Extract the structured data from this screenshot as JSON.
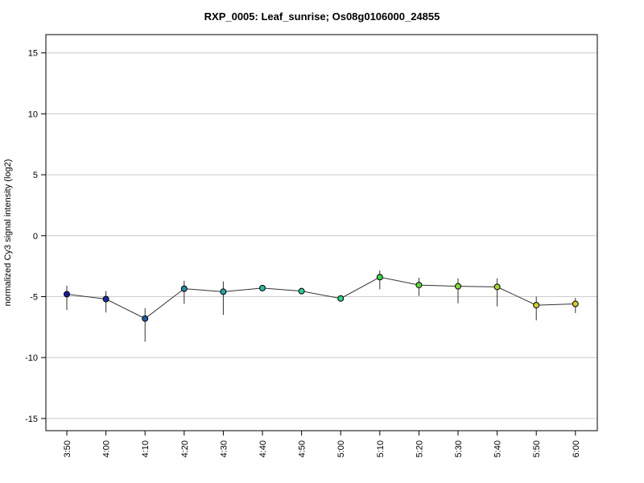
{
  "chart_data": {
    "type": "line",
    "title": "RXP_0005: Leaf_sunrise; Os08g0106000_24855",
    "xlabel": "",
    "ylabel": "normalized Cy3 signal intensity (log2)",
    "ylim": [
      -16,
      16.5
    ],
    "yticks": [
      -15,
      -10,
      -5,
      0,
      5,
      10,
      15
    ],
    "grid": "horizontal",
    "categories": [
      "3:50",
      "4:00",
      "4:10",
      "4:20",
      "4:30",
      "4:40",
      "4:50",
      "5:00",
      "5:10",
      "5:20",
      "5:30",
      "5:40",
      "5:50",
      "6:00"
    ],
    "series": [
      {
        "values": [
          -4.8,
          -5.2,
          -6.8,
          -4.35,
          -4.6,
          -4.3,
          -4.55,
          -5.15,
          -3.4,
          -4.05,
          -4.15,
          -4.2,
          -5.7,
          -5.6
        ],
        "error_low": [
          -6.1,
          -6.3,
          -8.7,
          -5.6,
          -6.5,
          -4.5,
          -4.7,
          -5.35,
          -4.4,
          -4.95,
          -5.55,
          -5.8,
          -6.95,
          -6.35
        ],
        "error_high": [
          -4.1,
          -4.55,
          -5.95,
          -3.7,
          -3.75,
          -4.15,
          -4.4,
          -4.95,
          -2.85,
          -3.45,
          -3.5,
          -3.5,
          -5.0,
          -5.1
        ],
        "point_colors": [
          "#1a1aa0",
          "#1f2d9e",
          "#265a9e",
          "#2a8aa4",
          "#2ba3a8",
          "#2bbaa3",
          "#2dc79a",
          "#31d27e",
          "#3ad848",
          "#5ed838",
          "#84d834",
          "#a8d530",
          "#c9cf2e",
          "#d6cc2f"
        ]
      }
    ]
  }
}
